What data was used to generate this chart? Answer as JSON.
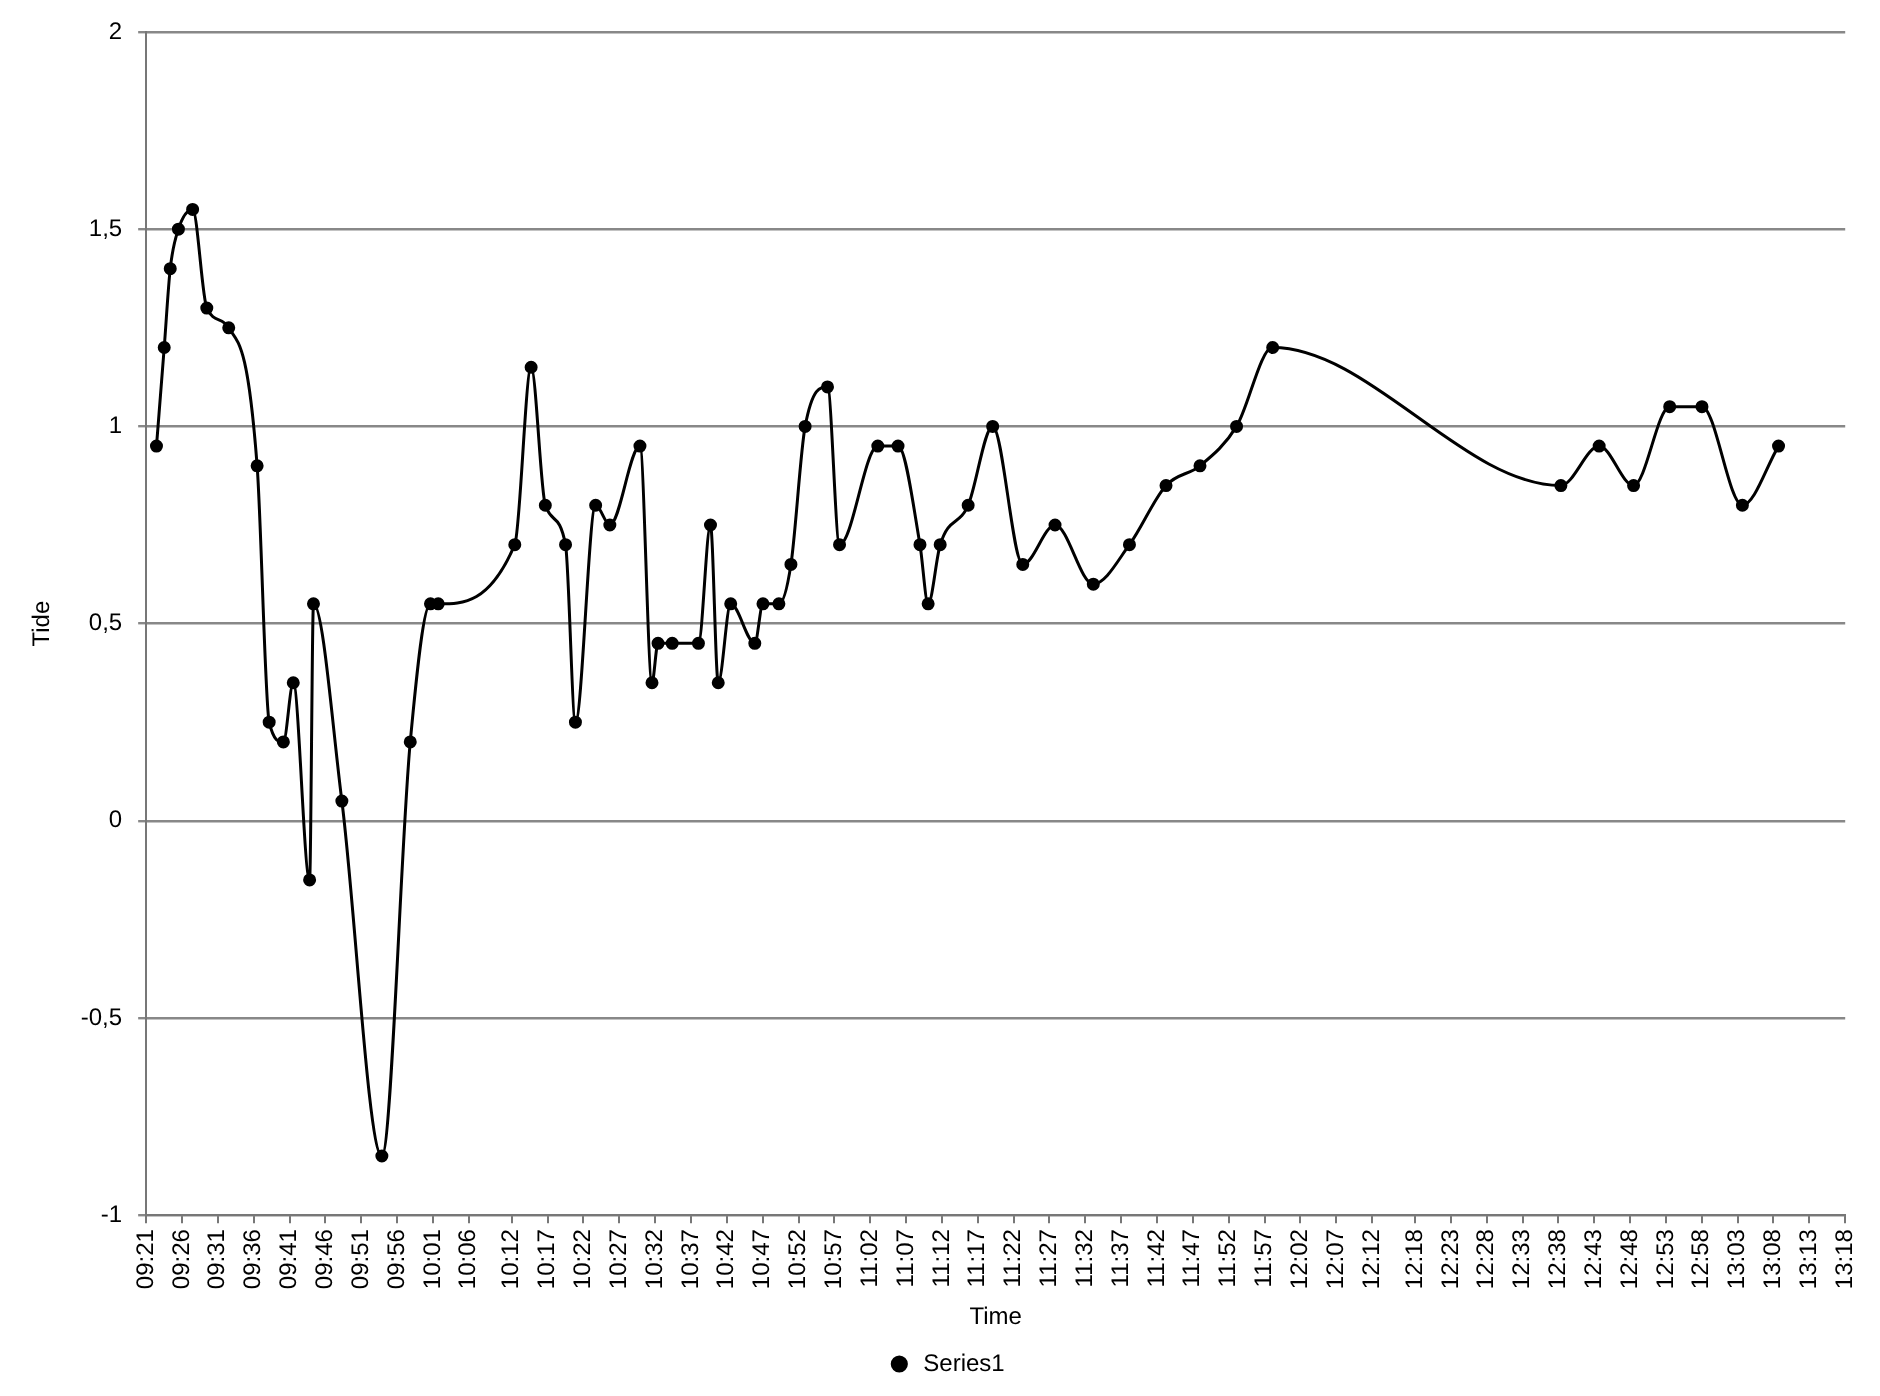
{
  "chart_data": {
    "type": "line",
    "xlabel": "Time",
    "ylabel": "Tide",
    "xlim": [
      9.35,
      13.3
    ],
    "xticks": [
      {
        "value": 9.35,
        "label": "09:21"
      },
      {
        "value": 9.4333,
        "label": "09:26"
      },
      {
        "value": 9.5167,
        "label": "09:31"
      },
      {
        "value": 9.6,
        "label": "09:36"
      },
      {
        "value": 9.6833,
        "label": "09:41"
      },
      {
        "value": 9.7667,
        "label": "09:46"
      },
      {
        "value": 9.85,
        "label": "09:51"
      },
      {
        "value": 9.9333,
        "label": "09:56"
      },
      {
        "value": 10.0167,
        "label": "10:01"
      },
      {
        "value": 10.1,
        "label": "10:06"
      },
      {
        "value": 10.2,
        "label": "10:12"
      },
      {
        "value": 10.2833,
        "label": "10:17"
      },
      {
        "value": 10.3667,
        "label": "10:22"
      },
      {
        "value": 10.45,
        "label": "10:27"
      },
      {
        "value": 10.5333,
        "label": "10:32"
      },
      {
        "value": 10.6167,
        "label": "10:37"
      },
      {
        "value": 10.7,
        "label": "10:42"
      },
      {
        "value": 10.7833,
        "label": "10:47"
      },
      {
        "value": 10.8667,
        "label": "10:52"
      },
      {
        "value": 10.95,
        "label": "10:57"
      },
      {
        "value": 11.0333,
        "label": "11:02"
      },
      {
        "value": 11.1167,
        "label": "11:07"
      },
      {
        "value": 11.2,
        "label": "11:12"
      },
      {
        "value": 11.2833,
        "label": "11:17"
      },
      {
        "value": 11.3667,
        "label": "11:22"
      },
      {
        "value": 11.45,
        "label": "11:27"
      },
      {
        "value": 11.5333,
        "label": "11:32"
      },
      {
        "value": 11.6167,
        "label": "11:37"
      },
      {
        "value": 11.7,
        "label": "11:42"
      },
      {
        "value": 11.7833,
        "label": "11:47"
      },
      {
        "value": 11.8667,
        "label": "11:52"
      },
      {
        "value": 11.95,
        "label": "11:57"
      },
      {
        "value": 12.0333,
        "label": "12:02"
      },
      {
        "value": 12.1167,
        "label": "12:07"
      },
      {
        "value": 12.2,
        "label": "12:12"
      },
      {
        "value": 12.3,
        "label": "12:18"
      },
      {
        "value": 12.3833,
        "label": "12:23"
      },
      {
        "value": 12.4667,
        "label": "12:28"
      },
      {
        "value": 12.55,
        "label": "12:33"
      },
      {
        "value": 12.6333,
        "label": "12:38"
      },
      {
        "value": 12.7167,
        "label": "12:43"
      },
      {
        "value": 12.8,
        "label": "12:48"
      },
      {
        "value": 12.8833,
        "label": "12:53"
      },
      {
        "value": 12.9667,
        "label": "12:58"
      },
      {
        "value": 13.05,
        "label": "13:03"
      },
      {
        "value": 13.1333,
        "label": "13:08"
      },
      {
        "value": 13.2167,
        "label": "13:13"
      },
      {
        "value": 13.3,
        "label": "13:18"
      }
    ],
    "ylim": [
      -1,
      2
    ],
    "yticks": [
      {
        "value": -1,
        "label": "-1"
      },
      {
        "value": -0.5,
        "label": "-0,5"
      },
      {
        "value": 0,
        "label": "0"
      },
      {
        "value": 0.5,
        "label": "0,5"
      },
      {
        "value": 1,
        "label": "1"
      },
      {
        "value": 1.5,
        "label": "1,5"
      },
      {
        "value": 2,
        "label": "2"
      }
    ],
    "grid": "y",
    "legend": "bottom",
    "marker": "circle",
    "line_style": "solid",
    "series": [
      {
        "name": "Series1",
        "color": "#000000",
        "x": [
          9.374,
          9.392,
          9.406,
          9.425,
          9.458,
          9.491,
          9.542,
          9.608,
          9.636,
          9.669,
          9.692,
          9.73,
          9.739,
          9.805,
          9.898,
          9.964,
          10.011,
          10.029,
          10.207,
          10.245,
          10.278,
          10.325,
          10.348,
          10.395,
          10.428,
          10.498,
          10.526,
          10.54,
          10.573,
          10.634,
          10.662,
          10.68,
          10.709,
          10.765,
          10.784,
          10.821,
          10.849,
          10.882,
          10.934,
          10.962,
          11.051,
          11.098,
          11.149,
          11.168,
          11.196,
          11.261,
          11.318,
          11.388,
          11.463,
          11.552,
          11.636,
          11.721,
          11.8,
          11.885,
          11.969,
          12.639,
          12.728,
          12.808,
          12.892,
          12.967,
          13.061,
          13.145
        ],
        "values": [
          0.95,
          1.2,
          1.4,
          1.5,
          1.55,
          1.3,
          1.25,
          0.9,
          0.25,
          0.2,
          0.35,
          -0.15,
          0.55,
          0.05,
          -0.85,
          0.2,
          0.55,
          0.55,
          0.7,
          1.15,
          0.8,
          0.7,
          0.25,
          0.8,
          0.75,
          0.95,
          0.35,
          0.45,
          0.45,
          0.45,
          0.75,
          0.35,
          0.55,
          0.45,
          0.55,
          0.55,
          0.65,
          1.0,
          1.1,
          0.7,
          0.95,
          0.95,
          0.7,
          0.55,
          0.7,
          0.8,
          1.0,
          0.65,
          0.75,
          0.6,
          0.7,
          0.85,
          0.9,
          1.0,
          1.2,
          0.85,
          0.95,
          0.85,
          1.05,
          1.05,
          0.8,
          0.95
        ]
      }
    ]
  }
}
